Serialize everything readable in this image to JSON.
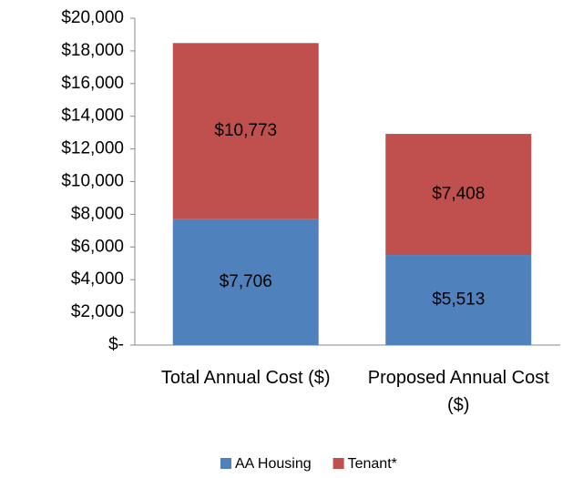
{
  "chart_data": {
    "type": "stacked_bar",
    "categories": [
      "Total Annual Cost ($)",
      "Proposed Annual Cost ($)"
    ],
    "series": [
      {
        "name": "AA Housing",
        "color": "#4f81bd",
        "values": [
          7706,
          5513
        ],
        "value_labels": [
          "$7,706",
          "$5,513"
        ]
      },
      {
        "name": "Tenant*",
        "color": "#c0504d",
        "values": [
          10773,
          7408
        ],
        "value_labels": [
          "$10,773",
          "$7,408"
        ]
      }
    ],
    "ylim": [
      0,
      20000
    ],
    "yticks": [
      {
        "value": 0,
        "label": "$-"
      },
      {
        "value": 2000,
        "label": "$2,000"
      },
      {
        "value": 4000,
        "label": "$4,000"
      },
      {
        "value": 6000,
        "label": "$6,000"
      },
      {
        "value": 8000,
        "label": "$8,000"
      },
      {
        "value": 10000,
        "label": "$10,000"
      },
      {
        "value": 12000,
        "label": "$12,000"
      },
      {
        "value": 14000,
        "label": "$14,000"
      },
      {
        "value": 16000,
        "label": "$16,000"
      },
      {
        "value": 18000,
        "label": "$18,000"
      },
      {
        "value": 20000,
        "label": "$20,000"
      }
    ],
    "grid": false,
    "legend": "bottom"
  }
}
